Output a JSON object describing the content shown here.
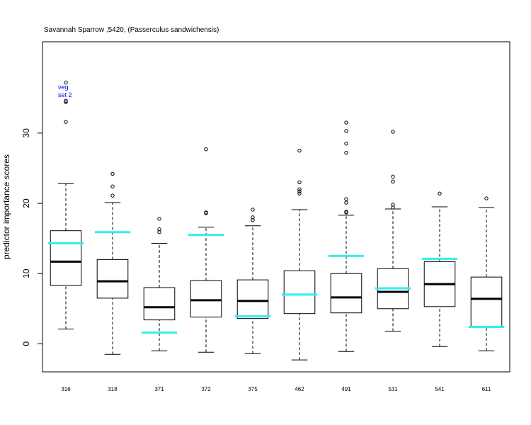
{
  "chart_data": {
    "type": "boxplot",
    "title": "Savannah Sparrow ,5420, (Passerculus sandwichensis)",
    "xlabel": "",
    "ylabel": "predictor importance scores",
    "ylim": [
      -4,
      43
    ],
    "yticks": [
      0,
      10,
      20,
      30
    ],
    "grid": false,
    "annotation": {
      "lines": [
        "veg",
        "set 2"
      ],
      "color": "#0000ff"
    },
    "colors": {
      "box": "#000000",
      "median": "#000000",
      "marker": "#33eeee"
    },
    "categories": [
      "316",
      "318",
      "371",
      "372",
      "375",
      "462",
      "491",
      "531",
      "541",
      "611"
    ],
    "series": [
      {
        "category": "316",
        "whisker_low": 2.1,
        "q1": 8.3,
        "median": 11.7,
        "q3": 16.1,
        "whisker_high": 22.8,
        "outliers": [
          31.6,
          34.4,
          34.6,
          37.2
        ],
        "marker": 14.3
      },
      {
        "category": "318",
        "whisker_low": -1.5,
        "q1": 6.5,
        "median": 8.9,
        "q3": 12.0,
        "whisker_high": 20.1,
        "outliers": [
          21.1,
          22.4,
          24.2
        ],
        "marker": 15.9
      },
      {
        "category": "371",
        "whisker_low": -1.0,
        "q1": 3.4,
        "median": 5.2,
        "q3": 8.0,
        "whisker_high": 14.3,
        "outliers": [
          15.9,
          16.3,
          17.8
        ],
        "marker": 1.6
      },
      {
        "category": "372",
        "whisker_low": -1.2,
        "q1": 3.8,
        "median": 6.2,
        "q3": 9.0,
        "whisker_high": 16.6,
        "outliers": [
          18.6,
          18.7,
          27.7
        ],
        "marker": 15.5
      },
      {
        "category": "375",
        "whisker_low": -1.4,
        "q1": 3.6,
        "median": 6.1,
        "q3": 9.1,
        "whisker_high": 16.8,
        "outliers": [
          17.6,
          18.0,
          19.1
        ],
        "marker": 3.9
      },
      {
        "category": "462",
        "whisker_low": -2.3,
        "q1": 4.3,
        "median": null,
        "q3": 10.4,
        "whisker_high": 19.1,
        "outliers": [
          21.4,
          21.7,
          22.0,
          23.0,
          27.5
        ],
        "marker": 7.0
      },
      {
        "category": "491",
        "whisker_low": -1.1,
        "q1": 4.4,
        "median": 6.6,
        "q3": 10.0,
        "whisker_high": 18.3,
        "outliers": [
          18.7,
          18.8,
          20.1,
          20.6,
          27.2,
          28.5,
          30.3,
          31.5
        ],
        "marker": 12.5
      },
      {
        "category": "531",
        "whisker_low": 1.8,
        "q1": 5.0,
        "median": 7.4,
        "q3": 10.7,
        "whisker_high": 19.2,
        "outliers": [
          19.4,
          19.8,
          23.1,
          23.8,
          30.2
        ],
        "marker": 7.9
      },
      {
        "category": "541",
        "whisker_low": -0.4,
        "q1": 5.3,
        "median": 8.5,
        "q3": 11.7,
        "whisker_high": 19.5,
        "outliers": [
          21.4
        ],
        "marker": 12.1
      },
      {
        "category": "611",
        "whisker_low": -1.0,
        "q1": 2.4,
        "median": 6.4,
        "q3": 9.5,
        "whisker_high": 19.4,
        "outliers": [
          20.7
        ],
        "marker": 2.4
      }
    ]
  }
}
